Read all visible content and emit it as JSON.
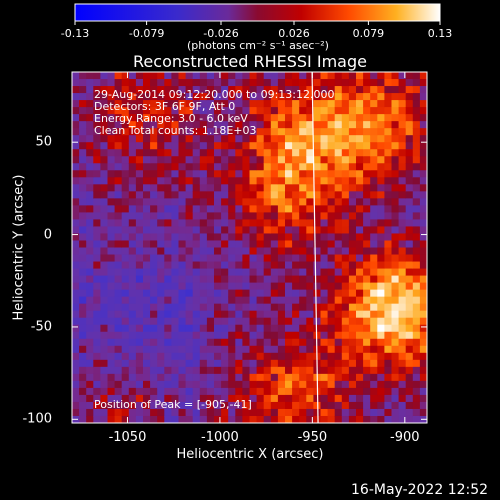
{
  "chart_data": {
    "type": "heatmap",
    "title": "Reconstructed RHESSI Image",
    "xlabel": "Heliocentric X (arcsec)",
    "ylabel": "Heliocentric Y (arcsec)",
    "xlim": [
      -1080,
      -888
    ],
    "ylim": [
      -102,
      88
    ],
    "x_ticks": [
      "-1050",
      "-1000",
      "-950",
      "-900"
    ],
    "x_tick_values": [
      -1050,
      -1000,
      -950,
      -900
    ],
    "y_ticks": [
      "50",
      "0",
      "-50",
      "-100"
    ],
    "y_tick_values": [
      50,
      0,
      -50,
      -100
    ],
    "colorbar": {
      "min": -0.13,
      "max": 0.13,
      "tick_labels": [
        "-0.13",
        "-0.079",
        "-0.026",
        "0.026",
        "0.079",
        "0.13"
      ],
      "tick_values": [
        -0.13,
        -0.079,
        -0.026,
        0.026,
        0.079,
        0.13
      ],
      "units": "(photons cm⁻² s⁻¹ asec⁻²)"
    },
    "annotations": [
      "29-Aug-2014 09:12:20.000 to 09:13:12.000",
      "Detectors: 3F 6F 9F, Att 0",
      "Energy Range: 3.0 - 6.0 keV",
      "Clean    Total counts: 1.18E+03"
    ],
    "peak_label": "Position of Peak = [-905,-41]",
    "peak_position": [
      -905,
      -41
    ],
    "limb_line_x": -948,
    "emission_sources": [
      {
        "x": -955,
        "y": 55,
        "level": 0.07
      },
      {
        "x": -965,
        "y": 20,
        "level": 0.06
      },
      {
        "x": -915,
        "y": 60,
        "level": 0.08
      },
      {
        "x": -905,
        "y": -41,
        "level": 0.13
      },
      {
        "x": -960,
        "y": -85,
        "level": 0.07
      },
      {
        "x": -1040,
        "y": 65,
        "level": 0.05
      },
      {
        "x": -1055,
        "y": -100,
        "level": 0.05
      }
    ]
  },
  "timestamp": "16-May-2022 12:52"
}
